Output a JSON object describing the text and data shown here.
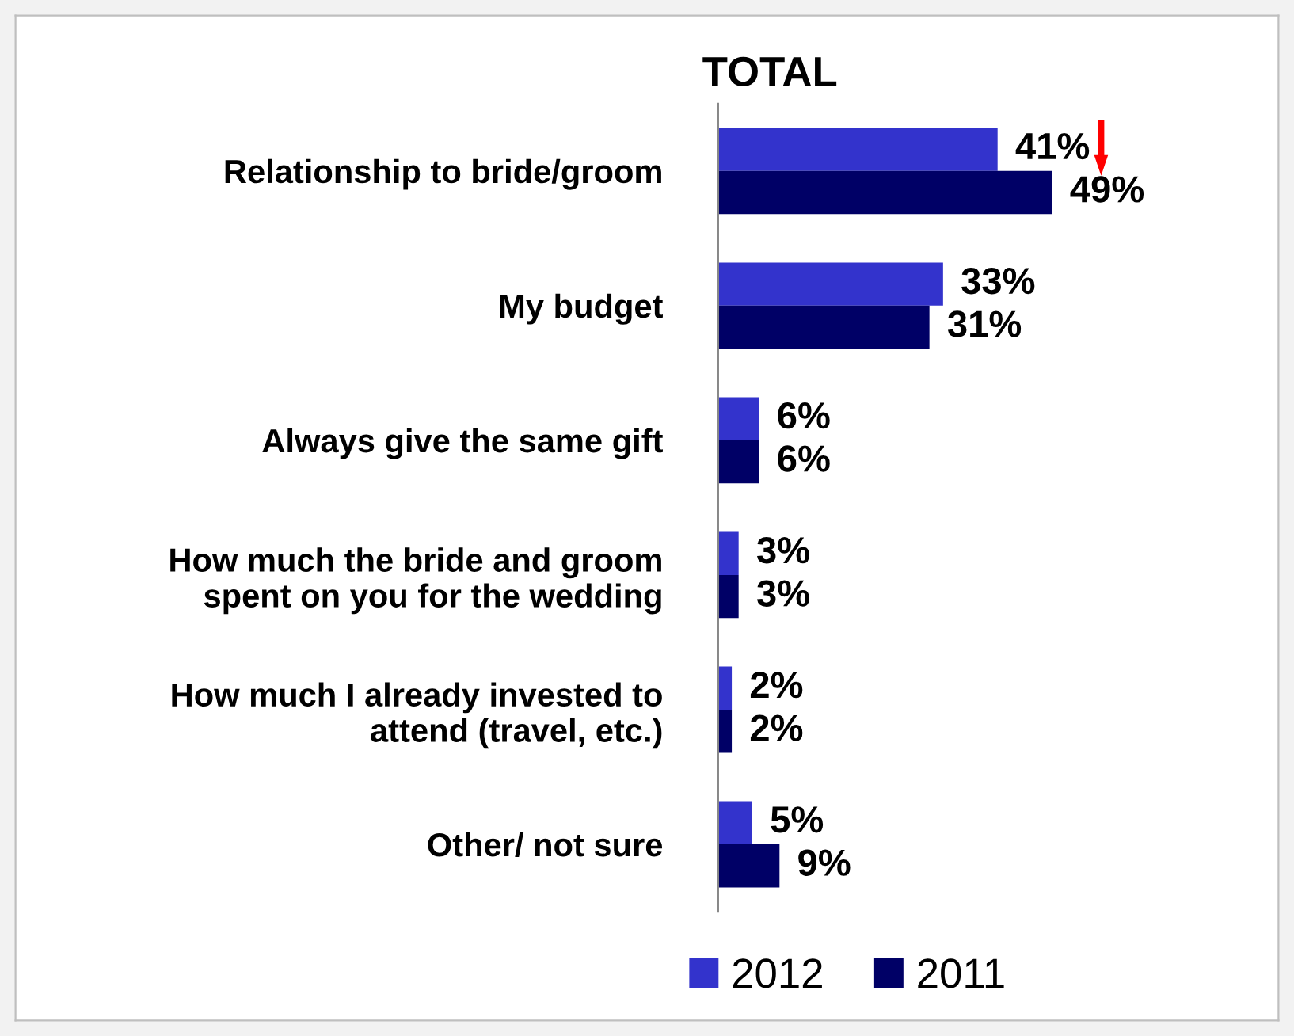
{
  "chart_data": {
    "type": "bar",
    "orientation": "horizontal",
    "title": "TOTAL",
    "categories": [
      "Relationship to bride/groom",
      "My budget",
      "Always give the same gift",
      "How much the bride and groom\nspent on you for the wedding",
      "How much I already invested to\nattend (travel, etc.)",
      "Other/ not sure"
    ],
    "series": [
      {
        "name": "2012",
        "color": "#3333cc",
        "values": [
          41,
          33,
          6,
          3,
          2,
          5
        ],
        "value_labels": [
          "41%",
          "33%",
          "6%",
          "3%",
          "2%",
          "5%"
        ]
      },
      {
        "name": "2011",
        "color": "#000066",
        "values": [
          49,
          31,
          6,
          3,
          2,
          9
        ],
        "value_labels": [
          "49%",
          "31%",
          "6%",
          "3%",
          "2%",
          "9%"
        ]
      }
    ],
    "tick_labels": "y",
    "legend": "bottom",
    "grid": false
  }
}
